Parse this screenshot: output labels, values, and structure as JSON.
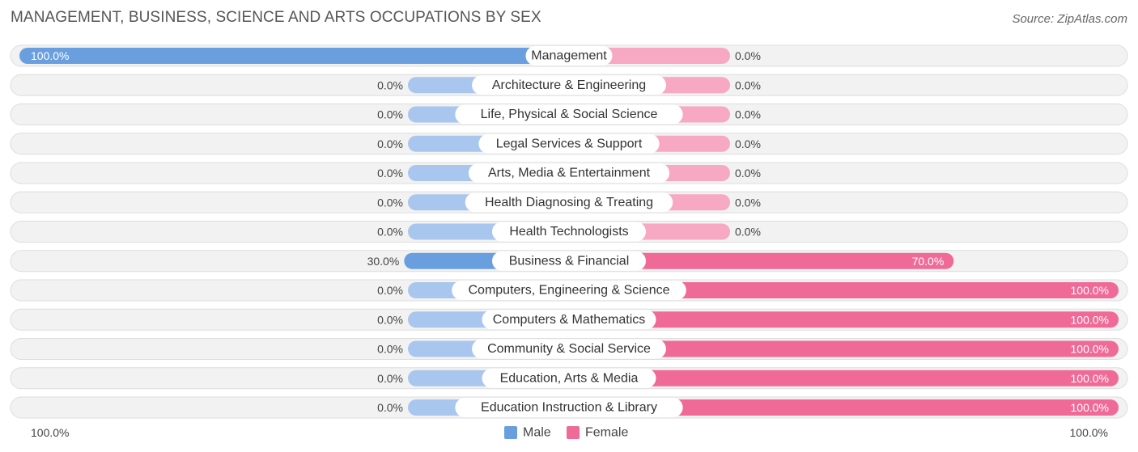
{
  "title": "MANAGEMENT, BUSINESS, SCIENCE AND ARTS OCCUPATIONS BY SEX",
  "source": "Source: ZipAtlas.com",
  "colors": {
    "male": "#6a9fdf",
    "male_light": "#a9c7ee",
    "female": "#f06a97",
    "female_light": "#f7a8c3",
    "row_bg": "#f2f2f2",
    "row_border": "#dddddd"
  },
  "chart_data": {
    "type": "bar",
    "orientation": "horizontal-diverging",
    "title": "MANAGEMENT, BUSINESS, SCIENCE AND ARTS OCCUPATIONS BY SEX",
    "categories": [
      "Management",
      "Architecture & Engineering",
      "Life, Physical & Social Science",
      "Legal Services & Support",
      "Arts, Media & Entertainment",
      "Health Diagnosing & Treating",
      "Health Technologists",
      "Business & Financial",
      "Computers, Engineering & Science",
      "Computers & Mathematics",
      "Community & Social Service",
      "Education, Arts & Media",
      "Education Instruction & Library"
    ],
    "series": [
      {
        "name": "Male",
        "values": [
          100,
          0,
          0,
          0,
          0,
          0,
          0,
          30,
          0,
          0,
          0,
          0,
          0
        ],
        "labels": [
          "100.0%",
          "0.0%",
          "0.0%",
          "0.0%",
          "0.0%",
          "0.0%",
          "0.0%",
          "30.0%",
          "0.0%",
          "0.0%",
          "0.0%",
          "0.0%",
          "0.0%"
        ]
      },
      {
        "name": "Female",
        "values": [
          0,
          0,
          0,
          0,
          0,
          0,
          0,
          70,
          100,
          100,
          100,
          100,
          100
        ],
        "labels": [
          "0.0%",
          "0.0%",
          "0.0%",
          "0.0%",
          "0.0%",
          "0.0%",
          "0.0%",
          "70.0%",
          "100.0%",
          "100.0%",
          "100.0%",
          "100.0%",
          "100.0%"
        ]
      }
    ],
    "xlim": [
      0,
      100
    ],
    "axis_left_label": "100.0%",
    "axis_right_label": "100.0%",
    "legend": [
      "Male",
      "Female"
    ],
    "legend_position": "bottom-center"
  }
}
